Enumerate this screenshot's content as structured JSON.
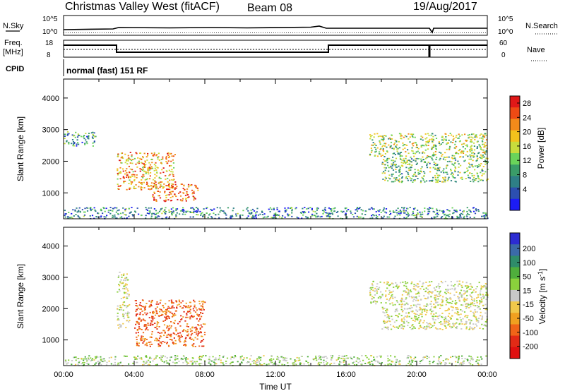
{
  "header": {
    "title": "Christmas Valley West (fitACF)",
    "beam": "Beam 08",
    "date": "19/Aug/2017"
  },
  "ops": {
    "nsky_label": "N.Sky",
    "nsky_ticks": [
      "10^5",
      "10^0"
    ],
    "nsearch_label": "N.Search",
    "nsearch_ticks": [
      "10^5",
      "10^0"
    ],
    "freq_label_1": "Freq.",
    "freq_label_2": "[MHz]",
    "freq_ticks": [
      "18",
      "8"
    ],
    "nave_label": "Nave",
    "nave_ticks": [
      "60",
      "0"
    ],
    "cpid_label": "CPID",
    "cpid_text": "normal (fast) 151 RF"
  },
  "chart_data": [
    {
      "type": "heatmap",
      "id": "power",
      "xlabel": "",
      "ylabel": "Slant Range [km]",
      "xlim_hours": [
        0,
        24
      ],
      "ylim_km": [
        180,
        4600
      ],
      "yticks": [
        "4000",
        "3000",
        "2000",
        "1000"
      ],
      "colorbar_label": "Power [dB]",
      "colorbar_ticks": [
        "28",
        "24",
        "20",
        "16",
        "12",
        "8",
        "4"
      ],
      "colorbar_colors": [
        "#1c1cf5",
        "#2c4fb0",
        "#2e7f86",
        "#3a9c68",
        "#6ad35a",
        "#c8dc3c",
        "#f2c21c",
        "#f28a1a",
        "#ee4a14",
        "#e01818"
      ],
      "regions": [
        {
          "name": "near-range band",
          "t0": 0.0,
          "t1": 24.0,
          "r0": 200,
          "r1": 560,
          "level": 0.25
        },
        {
          "name": "morning group a",
          "t0": 3.0,
          "t1": 6.3,
          "r0": 1100,
          "r1": 2300,
          "level": 0.72
        },
        {
          "name": "morning group b",
          "t0": 5.0,
          "t1": 7.6,
          "r0": 750,
          "r1": 1300,
          "level": 0.85
        },
        {
          "name": "early echoes",
          "t0": 0.0,
          "t1": 1.8,
          "r0": 2500,
          "r1": 2950,
          "level": 0.3
        },
        {
          "name": "evening upper arc",
          "t0": 17.3,
          "t1": 24.0,
          "r0": 2150,
          "r1": 2900,
          "level": 0.5
        },
        {
          "name": "evening lower arc",
          "t0": 18.0,
          "t1": 24.0,
          "r0": 1350,
          "r1": 2150,
          "level": 0.42
        }
      ]
    },
    {
      "type": "heatmap",
      "id": "velocity",
      "xlabel": "Time UT",
      "ylabel": "Slant Range [km]",
      "xlim_hours": [
        0,
        24
      ],
      "ylim_km": [
        180,
        4600
      ],
      "xticks": [
        "00:00",
        "04:00",
        "08:00",
        "12:00",
        "16:00",
        "20:00",
        "00:00"
      ],
      "yticks": [
        "4000",
        "3000",
        "2000",
        "1000"
      ],
      "colorbar_label": "Velocity [m s^-1]",
      "colorbar_ticks": [
        "200",
        "100",
        "50",
        "15",
        "-15",
        "-50",
        "-100",
        "-200"
      ],
      "colorbar_colors": [
        "#2c2cd2",
        "#3b6aa8",
        "#2f8c6a",
        "#4fae3c",
        "#8ad13c",
        "#c8c8c8",
        "#f0c84a",
        "#f0a020",
        "#f06418",
        "#e22a16",
        "#e01010"
      ],
      "regions": [
        {
          "name": "near-range band",
          "t0": 0.0,
          "t1": 24.0,
          "r0": 200,
          "r1": 520,
          "value": 30
        },
        {
          "name": "morning group",
          "t0": 4.0,
          "t1": 8.0,
          "r0": 800,
          "r1": 2300,
          "value": -120
        },
        {
          "name": "evening upper arc",
          "t0": 17.3,
          "t1": 24.0,
          "r0": 2150,
          "r1": 2900,
          "value": 0
        },
        {
          "name": "evening lower arc",
          "t0": 18.0,
          "t1": 24.0,
          "r0": 1350,
          "r1": 2150,
          "value": 0
        },
        {
          "name": "ground scatter patch",
          "t0": 3.0,
          "t1": 3.7,
          "r0": 1400,
          "r1": 3200,
          "value": 0
        }
      ]
    }
  ]
}
